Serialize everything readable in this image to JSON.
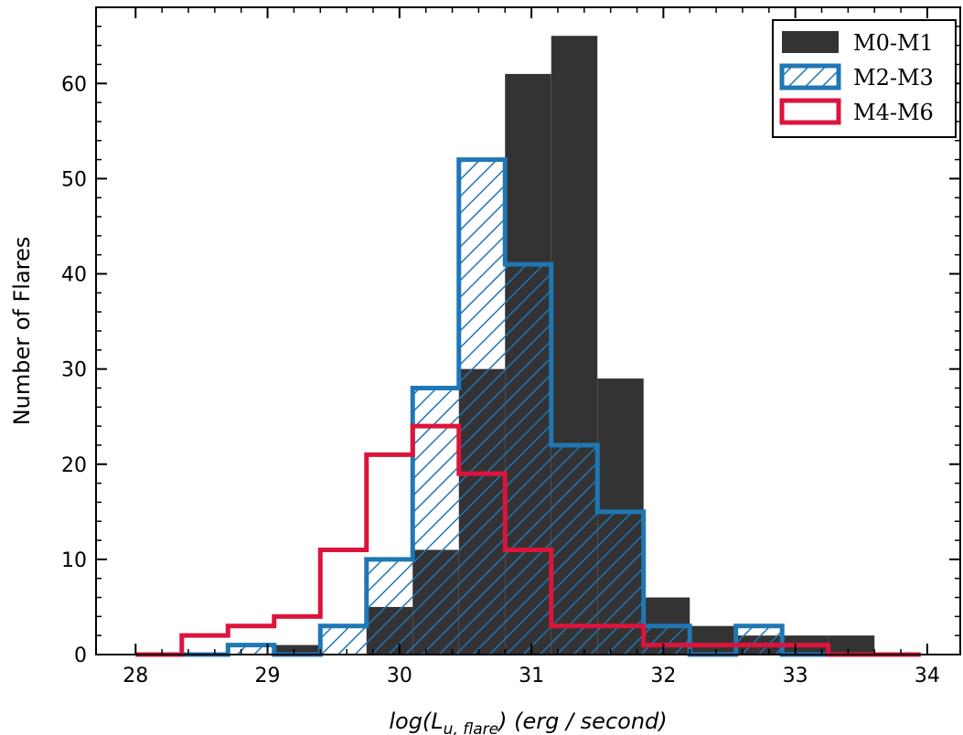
{
  "chart_data": {
    "type": "histogram",
    "title": "",
    "xlabel_main": "log(L",
    "xlabel_sub": "u, flare",
    "xlabel_tail": ") (erg / second)",
    "ylabel": "Number of Flares",
    "xlim": [
      27.7,
      34.25
    ],
    "ylim": [
      0,
      68
    ],
    "xticks": [
      28,
      29,
      30,
      31,
      32,
      33,
      34
    ],
    "yticks": [
      0,
      10,
      20,
      30,
      40,
      50,
      60
    ],
    "legend_position": "top-right",
    "grid": false,
    "series": [
      {
        "name": "M0-M1",
        "style": "filled",
        "color": "#333333",
        "bin_edges": [
          28.0,
          28.35,
          28.7,
          29.05,
          29.4,
          29.75,
          30.1,
          30.45,
          30.8,
          31.15,
          31.5,
          31.85,
          32.2,
          32.55,
          32.9,
          33.25,
          33.6,
          33.95
        ],
        "counts": [
          0,
          0,
          0,
          1,
          0,
          5,
          11,
          30,
          61,
          65,
          29,
          6,
          3,
          2,
          2,
          2,
          0
        ]
      },
      {
        "name": "M2-M3",
        "style": "hatched",
        "color": "#1f77b4",
        "bin_edges": [
          28.0,
          28.35,
          28.7,
          29.05,
          29.4,
          29.75,
          30.1,
          30.45,
          30.8,
          31.15,
          31.5,
          31.85,
          32.2,
          32.55,
          32.9,
          33.25,
          33.6,
          33.95
        ],
        "counts": [
          0,
          0,
          1,
          0,
          3,
          10,
          28,
          52,
          41,
          22,
          15,
          3,
          0,
          3,
          0,
          0,
          0
        ]
      },
      {
        "name": "M4-M6",
        "style": "step",
        "color": "#dc143c",
        "bin_edges": [
          28.0,
          28.35,
          28.7,
          29.05,
          29.4,
          29.75,
          30.1,
          30.45,
          30.8,
          31.15,
          31.5,
          31.85,
          32.2,
          32.55,
          32.9,
          33.25,
          33.6,
          33.95
        ],
        "counts": [
          0,
          2,
          3,
          4,
          11,
          21,
          24,
          19,
          11,
          3,
          3,
          1,
          1,
          1,
          1,
          0,
          0
        ]
      }
    ]
  }
}
